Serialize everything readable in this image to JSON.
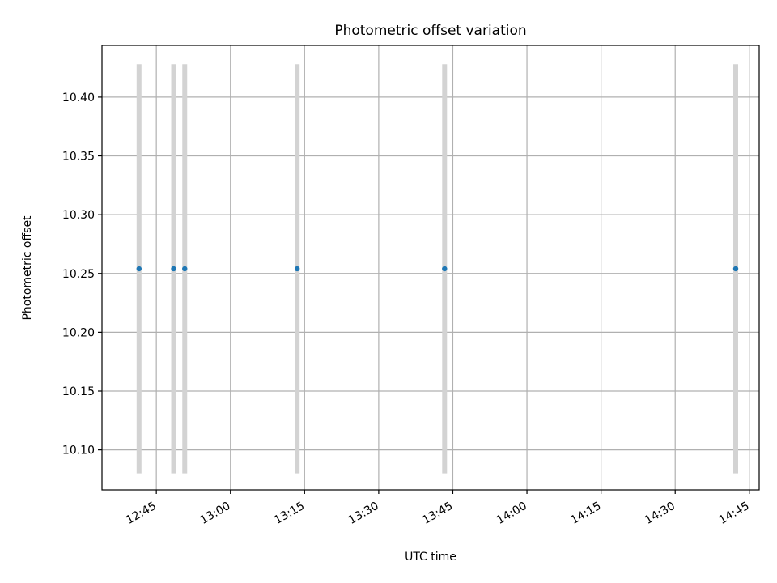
{
  "chart_data": {
    "type": "scatter",
    "title": "Photometric offset variation",
    "xlabel": "UTC time",
    "ylabel": "Photometric offset",
    "x_axis": {
      "kind": "time",
      "range": [
        "12:34",
        "14:47"
      ],
      "ticks": [
        "12:45",
        "13:00",
        "13:15",
        "13:30",
        "13:45",
        "14:00",
        "14:15",
        "14:30",
        "14:45"
      ]
    },
    "y_axis": {
      "range": [
        10.066,
        10.444
      ],
      "ticks": [
        "10.10",
        "10.15",
        "10.20",
        "10.25",
        "10.30",
        "10.35",
        "10.40"
      ]
    },
    "grid": true,
    "series": [
      {
        "points": [
          {
            "x": "12:41:30",
            "y": 10.254
          },
          {
            "x": "12:48:30",
            "y": 10.254
          },
          {
            "x": "12:50:45",
            "y": 10.254
          },
          {
            "x": "13:13:30",
            "y": 10.254
          },
          {
            "x": "13:43:20",
            "y": 10.254
          },
          {
            "x": "14:42:15",
            "y": 10.254
          }
        ],
        "error_band": [
          10.08,
          10.428
        ]
      }
    ],
    "colors": {
      "points": "#1f77b4",
      "error_bars": "#d3d3d3",
      "grid": "#b0b0b0"
    }
  }
}
